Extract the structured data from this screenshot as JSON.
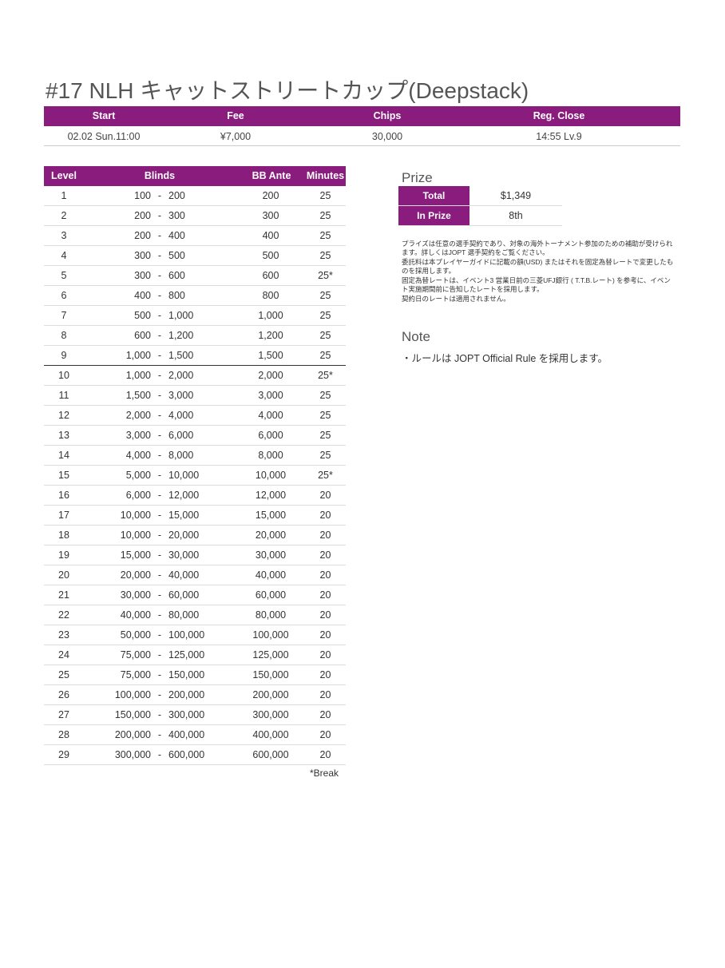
{
  "title": "#17 NLH キャットストリートカップ(Deepstack)",
  "info": {
    "headers": [
      "Start",
      "Fee",
      "Chips",
      "Reg. Close"
    ],
    "row": [
      "02.02 Sun.11:00",
      "¥7,000",
      "30,000",
      "14:55 Lv.9"
    ]
  },
  "blinds": {
    "headers": [
      "Level",
      "Blinds",
      "BB Ante",
      "Minutes"
    ],
    "separator": "-",
    "rows": [
      [
        "1",
        "100",
        "200",
        "200",
        "25"
      ],
      [
        "2",
        "200",
        "300",
        "300",
        "25"
      ],
      [
        "3",
        "200",
        "400",
        "400",
        "25"
      ],
      [
        "4",
        "300",
        "500",
        "500",
        "25"
      ],
      [
        "5",
        "300",
        "600",
        "600",
        "25*"
      ],
      [
        "6",
        "400",
        "800",
        "800",
        "25"
      ],
      [
        "7",
        "500",
        "1,000",
        "1,000",
        "25"
      ],
      [
        "8",
        "600",
        "1,200",
        "1,200",
        "25"
      ],
      [
        "9",
        "1,000",
        "1,500",
        "1,500",
        "25"
      ],
      [
        "10",
        "1,000",
        "2,000",
        "2,000",
        "25*"
      ],
      [
        "11",
        "1,500",
        "3,000",
        "3,000",
        "25"
      ],
      [
        "12",
        "2,000",
        "4,000",
        "4,000",
        "25"
      ],
      [
        "13",
        "3,000",
        "6,000",
        "6,000",
        "25"
      ],
      [
        "14",
        "4,000",
        "8,000",
        "8,000",
        "25"
      ],
      [
        "15",
        "5,000",
        "10,000",
        "10,000",
        "25*"
      ],
      [
        "16",
        "6,000",
        "12,000",
        "12,000",
        "20"
      ],
      [
        "17",
        "10,000",
        "15,000",
        "15,000",
        "20"
      ],
      [
        "18",
        "10,000",
        "20,000",
        "20,000",
        "20"
      ],
      [
        "19",
        "15,000",
        "30,000",
        "30,000",
        "20"
      ],
      [
        "20",
        "20,000",
        "40,000",
        "40,000",
        "20"
      ],
      [
        "21",
        "30,000",
        "60,000",
        "60,000",
        "20"
      ],
      [
        "22",
        "40,000",
        "80,000",
        "80,000",
        "20"
      ],
      [
        "23",
        "50,000",
        "100,000",
        "100,000",
        "20"
      ],
      [
        "24",
        "75,000",
        "125,000",
        "125,000",
        "20"
      ],
      [
        "25",
        "75,000",
        "150,000",
        "150,000",
        "20"
      ],
      [
        "26",
        "100,000",
        "200,000",
        "200,000",
        "20"
      ],
      [
        "27",
        "150,000",
        "300,000",
        "300,000",
        "20"
      ],
      [
        "28",
        "200,000",
        "400,000",
        "400,000",
        "20"
      ],
      [
        "29",
        "300,000",
        "600,000",
        "600,000",
        "20"
      ]
    ],
    "footnote": "*Break"
  },
  "prize": {
    "heading": "Prize",
    "rows": [
      [
        "Total",
        "$1,349"
      ],
      [
        "In Prize",
        "8th"
      ]
    ],
    "notes": [
      "プライズは任意の選手契約であり、対象の海外トーナメント参加のための補助が受けられます。詳しくはJOPT 選手契約をご覧ください。",
      "委託料は本プレイヤーガイドに記載の額(USD) またはそれを固定為替レートで変更したものを採用します。",
      "固定為替レートは、イベント3 営業日前の三菱UFJ銀行 ( T.T.B.レート) を参考に、イベント実施期間前に告知したレートを採用します。",
      "契約日のレートは適用されません。"
    ]
  },
  "note": {
    "heading": "Note",
    "text": "・ルールは JOPT Official Rule を採用します。"
  }
}
